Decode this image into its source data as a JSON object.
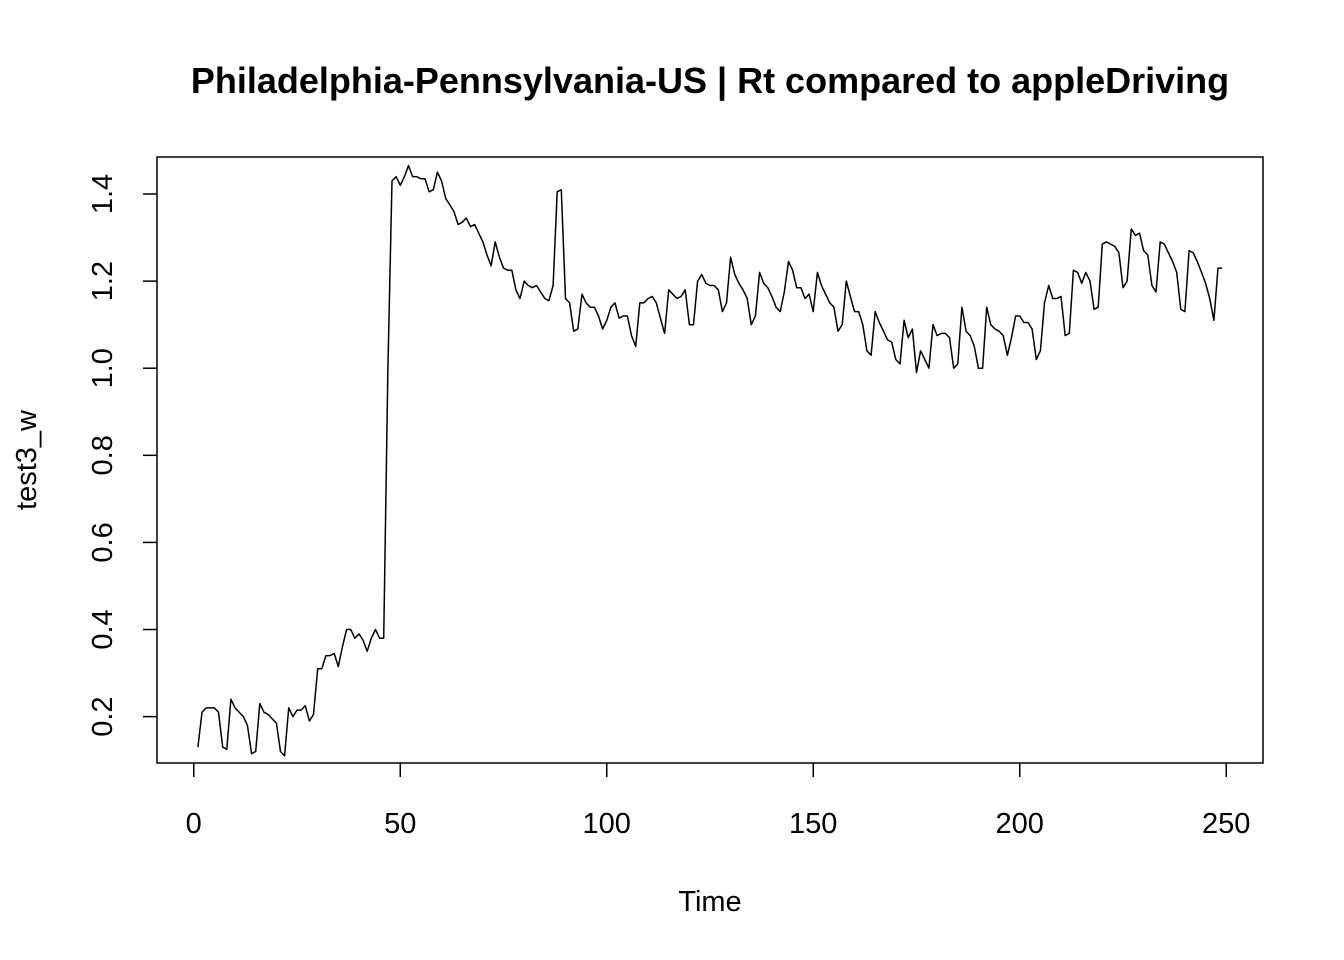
{
  "chart_data": {
    "type": "line",
    "title": "Philadelphia-Pennsylvania-US | Rt compared to appleDriving",
    "xlabel": "Time",
    "ylabel": "test3_w",
    "xlim": [
      -8.9,
      258.9
    ],
    "ylim": [
      0.0935,
      1.485
    ],
    "x_ticks": [
      0,
      50,
      100,
      150,
      200,
      250
    ],
    "y_ticks": [
      0.2,
      0.4,
      0.6,
      0.8,
      1.0,
      1.2,
      1.4
    ],
    "x_tick_labels": [
      "0",
      "50",
      "100",
      "150",
      "200",
      "250"
    ],
    "y_tick_labels": [
      "0.2",
      "0.4",
      "0.6",
      "0.8",
      "1.0",
      "1.2",
      "1.4"
    ],
    "grid": false,
    "legend": "none",
    "color": "#000000",
    "series": [
      {
        "x_start": 1,
        "x_step": 1,
        "values": [
          0.13,
          0.21,
          0.22,
          0.22,
          0.22,
          0.21,
          0.13,
          0.125,
          0.24,
          0.22,
          0.21,
          0.2,
          0.18,
          0.115,
          0.12,
          0.23,
          0.21,
          0.205,
          0.195,
          0.185,
          0.12,
          0.11,
          0.22,
          0.2,
          0.215,
          0.215,
          0.225,
          0.19,
          0.205,
          0.31,
          0.31,
          0.34,
          0.34,
          0.345,
          0.315,
          0.36,
          0.4,
          0.4,
          0.38,
          0.39,
          0.375,
          0.35,
          0.38,
          0.4,
          0.38,
          0.38,
          1.0,
          1.43,
          1.44,
          1.42,
          1.44,
          1.465,
          1.44,
          1.44,
          1.435,
          1.435,
          1.405,
          1.41,
          1.45,
          1.43,
          1.39,
          1.375,
          1.36,
          1.33,
          1.335,
          1.345,
          1.325,
          1.33,
          1.31,
          1.29,
          1.26,
          1.235,
          1.29,
          1.255,
          1.23,
          1.225,
          1.225,
          1.18,
          1.16,
          1.2,
          1.19,
          1.185,
          1.19,
          1.175,
          1.16,
          1.155,
          1.19,
          1.405,
          1.41,
          1.16,
          1.15,
          1.085,
          1.09,
          1.17,
          1.15,
          1.14,
          1.14,
          1.12,
          1.09,
          1.11,
          1.14,
          1.15,
          1.115,
          1.12,
          1.12,
          1.075,
          1.05,
          1.15,
          1.15,
          1.16,
          1.165,
          1.15,
          1.115,
          1.08,
          1.18,
          1.17,
          1.16,
          1.165,
          1.18,
          1.1,
          1.1,
          1.2,
          1.215,
          1.195,
          1.19,
          1.19,
          1.18,
          1.13,
          1.15,
          1.255,
          1.215,
          1.195,
          1.18,
          1.16,
          1.1,
          1.12,
          1.22,
          1.195,
          1.185,
          1.165,
          1.14,
          1.13,
          1.175,
          1.245,
          1.225,
          1.185,
          1.185,
          1.16,
          1.17,
          1.13,
          1.22,
          1.19,
          1.17,
          1.15,
          1.14,
          1.085,
          1.1,
          1.2,
          1.165,
          1.13,
          1.13,
          1.1,
          1.04,
          1.03,
          1.13,
          1.105,
          1.085,
          1.065,
          1.06,
          1.02,
          1.01,
          1.11,
          1.07,
          1.09,
          0.99,
          1.04,
          1.02,
          1.0,
          1.1,
          1.075,
          1.08,
          1.08,
          1.07,
          1.0,
          1.01,
          1.14,
          1.085,
          1.075,
          1.05,
          1.0,
          1.0,
          1.14,
          1.1,
          1.09,
          1.085,
          1.075,
          1.03,
          1.07,
          1.12,
          1.12,
          1.105,
          1.105,
          1.09,
          1.02,
          1.04,
          1.15,
          1.19,
          1.16,
          1.16,
          1.165,
          1.075,
          1.08,
          1.225,
          1.22,
          1.195,
          1.22,
          1.2,
          1.135,
          1.14,
          1.285,
          1.29,
          1.285,
          1.28,
          1.265,
          1.185,
          1.2,
          1.32,
          1.305,
          1.31,
          1.27,
          1.26,
          1.19,
          1.175,
          1.29,
          1.285,
          1.265,
          1.245,
          1.22,
          1.135,
          1.13,
          1.27,
          1.265,
          1.245,
          1.22,
          1.195,
          1.16,
          1.11,
          1.23,
          1.23
        ]
      }
    ]
  }
}
